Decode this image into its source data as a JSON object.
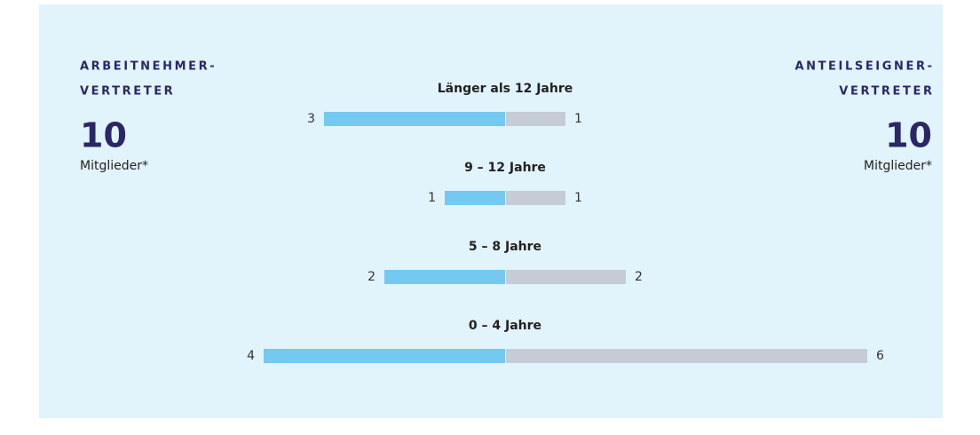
{
  "chart_data": {
    "type": "butterfly",
    "categories": [
      "Länger als 12 Jahre",
      "9 – 12 Jahre",
      "5 – 8 Jahre",
      "0 – 4 Jahre"
    ],
    "series": [
      {
        "name_lines": [
          "ARBEITNEHMER-",
          "VERTRETER"
        ],
        "total": 10,
        "total_label": "Mitglieder*",
        "color": "#74c9f1",
        "values": [
          3,
          1,
          2,
          4
        ]
      },
      {
        "name_lines": [
          "ANTEILSEIGNER-",
          "VERTRETER"
        ],
        "total": 10,
        "total_label": "Mitglieder*",
        "color": "#c5ccd6",
        "values": [
          1,
          1,
          2,
          6
        ]
      }
    ]
  }
}
